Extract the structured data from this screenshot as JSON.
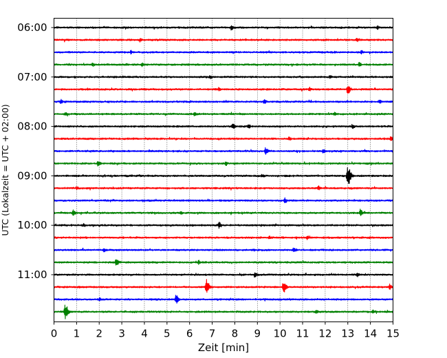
{
  "chart_data": {
    "type": "line",
    "title": "",
    "xlabel": "Zeit  [min]",
    "ylabel": "UTC (Lokalzeit = UTC + 02:00)",
    "xlim": [
      0,
      15
    ],
    "x_ticks": [
      0,
      1,
      2,
      3,
      4,
      5,
      6,
      7,
      8,
      9,
      10,
      11,
      12,
      13,
      14,
      15
    ],
    "x_tick_labels": [
      "0",
      "1",
      "2",
      "3",
      "4",
      "5",
      "6",
      "7",
      "8",
      "9",
      "10",
      "11",
      "12",
      "13",
      "14",
      "15"
    ],
    "y_tick_labels": [
      "06:00",
      "07:00",
      "08:00",
      "09:00",
      "10:00",
      "11:00"
    ],
    "y_tick_trace_index": [
      0,
      4,
      8,
      12,
      16,
      20
    ],
    "vertical_grid": "dotted",
    "trace_colors": [
      "#000000",
      "#ff0000",
      "#0000ff",
      "#008000"
    ],
    "traces": [
      {
        "start": "06:00",
        "color": "#000000",
        "events": [
          {
            "t": 7.85,
            "amp": 0.45
          },
          {
            "t": 14.3,
            "amp": 0.3
          }
        ]
      },
      {
        "start": "06:15",
        "color": "#ff0000",
        "events": [
          {
            "t": 3.8,
            "amp": 0.25
          },
          {
            "t": 13.4,
            "amp": 0.25
          }
        ]
      },
      {
        "start": "06:30",
        "color": "#0000ff",
        "events": [
          {
            "t": 3.4,
            "amp": 0.25
          },
          {
            "t": 13.6,
            "amp": 0.25
          }
        ]
      },
      {
        "start": "06:45",
        "color": "#008000",
        "events": [
          {
            "t": 1.7,
            "amp": 0.3
          },
          {
            "t": 3.9,
            "amp": 0.3
          },
          {
            "t": 13.5,
            "amp": 0.35
          }
        ]
      },
      {
        "start": "07:00",
        "color": "#000000",
        "events": [
          {
            "t": 6.9,
            "amp": 0.25
          },
          {
            "t": 12.2,
            "amp": 0.25
          }
        ]
      },
      {
        "start": "07:15",
        "color": "#ff0000",
        "events": [
          {
            "t": 13.0,
            "amp": 0.9
          },
          {
            "t": 7.3,
            "amp": 0.3
          },
          {
            "t": 11.3,
            "amp": 0.3
          }
        ]
      },
      {
        "start": "07:30",
        "color": "#0000ff",
        "events": [
          {
            "t": 0.3,
            "amp": 0.3
          },
          {
            "t": 9.3,
            "amp": 0.35
          },
          {
            "t": 14.4,
            "amp": 0.3
          }
        ]
      },
      {
        "start": "07:45",
        "color": "#008000",
        "events": [
          {
            "t": 0.5,
            "amp": 0.25
          },
          {
            "t": 6.2,
            "amp": 0.25
          },
          {
            "t": 12.4,
            "amp": 0.25
          }
        ]
      },
      {
        "start": "08:00",
        "color": "#000000",
        "events": [
          {
            "t": 7.9,
            "amp": 0.5
          },
          {
            "t": 8.6,
            "amp": 0.35
          },
          {
            "t": 13.2,
            "amp": 0.35
          }
        ]
      },
      {
        "start": "08:15",
        "color": "#ff0000",
        "events": [
          {
            "t": 10.4,
            "amp": 0.3
          },
          {
            "t": 14.9,
            "amp": 0.35
          }
        ]
      },
      {
        "start": "08:30",
        "color": "#0000ff",
        "events": [
          {
            "t": 9.35,
            "amp": 0.6
          },
          {
            "t": 11.9,
            "amp": 0.3
          }
        ]
      },
      {
        "start": "08:45",
        "color": "#008000",
        "events": [
          {
            "t": 1.95,
            "amp": 0.5
          },
          {
            "t": 7.6,
            "amp": 0.25
          }
        ]
      },
      {
        "start": "09:00",
        "color": "#000000",
        "events": [
          {
            "t": 13.0,
            "amp": 1.7
          },
          {
            "t": 9.2,
            "amp": 0.3
          }
        ]
      },
      {
        "start": "09:15",
        "color": "#ff0000",
        "events": [
          {
            "t": 1.0,
            "amp": 0.25
          },
          {
            "t": 11.7,
            "amp": 0.35
          }
        ]
      },
      {
        "start": "09:30",
        "color": "#0000ff",
        "events": [
          {
            "t": 10.2,
            "amp": 0.45
          }
        ]
      },
      {
        "start": "09:45",
        "color": "#008000",
        "events": [
          {
            "t": 0.85,
            "amp": 0.5
          },
          {
            "t": 13.55,
            "amp": 0.6
          },
          {
            "t": 5.6,
            "amp": 0.25
          }
        ]
      },
      {
        "start": "10:00",
        "color": "#000000",
        "events": [
          {
            "t": 7.3,
            "amp": 0.55
          },
          {
            "t": 1.3,
            "amp": 0.25
          }
        ]
      },
      {
        "start": "10:15",
        "color": "#ff0000",
        "events": [
          {
            "t": 9.5,
            "amp": 0.25
          },
          {
            "t": 11.2,
            "amp": 0.25
          }
        ]
      },
      {
        "start": "10:30",
        "color": "#0000ff",
        "events": [
          {
            "t": 10.6,
            "amp": 0.45
          },
          {
            "t": 2.2,
            "amp": 0.25
          }
        ]
      },
      {
        "start": "10:45",
        "color": "#008000",
        "events": [
          {
            "t": 2.75,
            "amp": 0.8
          },
          {
            "t": 6.4,
            "amp": 0.3
          }
        ]
      },
      {
        "start": "11:00",
        "color": "#000000",
        "events": [
          {
            "t": 8.9,
            "amp": 0.4
          },
          {
            "t": 13.4,
            "amp": 0.35
          }
        ]
      },
      {
        "start": "11:15",
        "color": "#ff0000",
        "events": [
          {
            "t": 6.75,
            "amp": 1.3
          },
          {
            "t": 10.15,
            "amp": 1.0
          },
          {
            "t": 14.85,
            "amp": 0.4
          }
        ]
      },
      {
        "start": "11:30",
        "color": "#0000ff",
        "events": [
          {
            "t": 5.4,
            "amp": 0.85
          },
          {
            "t": 2.0,
            "amp": 0.25
          }
        ]
      },
      {
        "start": "11:45",
        "color": "#008000",
        "events": [
          {
            "t": 0.5,
            "amp": 1.4
          },
          {
            "t": 11.6,
            "amp": 0.35
          },
          {
            "t": 14.1,
            "amp": 0.3
          }
        ]
      }
    ]
  }
}
